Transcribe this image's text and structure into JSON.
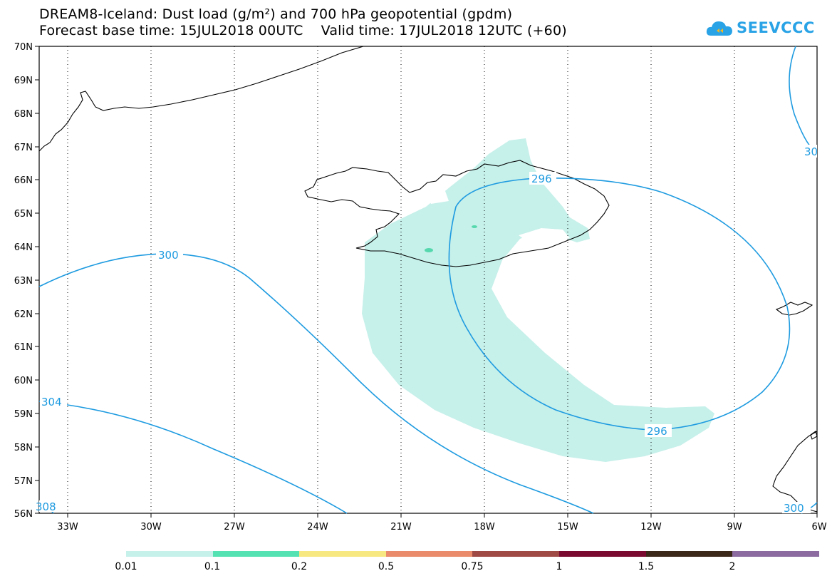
{
  "header": {
    "title_line1": "DREAM8-Iceland: Dust load (g/m²) and 700 hPa geopotential (gpdm)",
    "title_line2": "Forecast base time: 15JUL2018 00UTC    Valid time: 17JUL2018 12UTC (+60)"
  },
  "logo": {
    "text": "SEEVCCC",
    "icon": "cloud-logo-icon",
    "color": "#2aa3e6"
  },
  "map": {
    "lon_labels": [
      "33W",
      "30W",
      "27W",
      "24W",
      "21W",
      "18W",
      "15W",
      "12W",
      "9W",
      "6W"
    ],
    "lat_labels": [
      "70N",
      "69N",
      "68N",
      "67N",
      "66N",
      "65N",
      "64N",
      "63N",
      "62N",
      "61N",
      "60N",
      "59N",
      "58N",
      "57N",
      "56N"
    ],
    "contour_labels": [
      "300",
      "304",
      "296",
      "296",
      "30",
      "308",
      "300"
    ],
    "contour_color": "#1e9be0",
    "dust_color": "#c6f0ea",
    "dust_high_color": "#55d8ad"
  },
  "legend": {
    "colors": [
      "#c6f0ea",
      "#55e2b3",
      "#f8e881",
      "#ea8c6c",
      "#a04a46",
      "#7a0a30",
      "#3b2818",
      "#8c6ca0"
    ],
    "labels": [
      "0.01",
      "0.1",
      "0.2",
      "0.5",
      "0.75",
      "1",
      "1.5",
      "2"
    ]
  }
}
